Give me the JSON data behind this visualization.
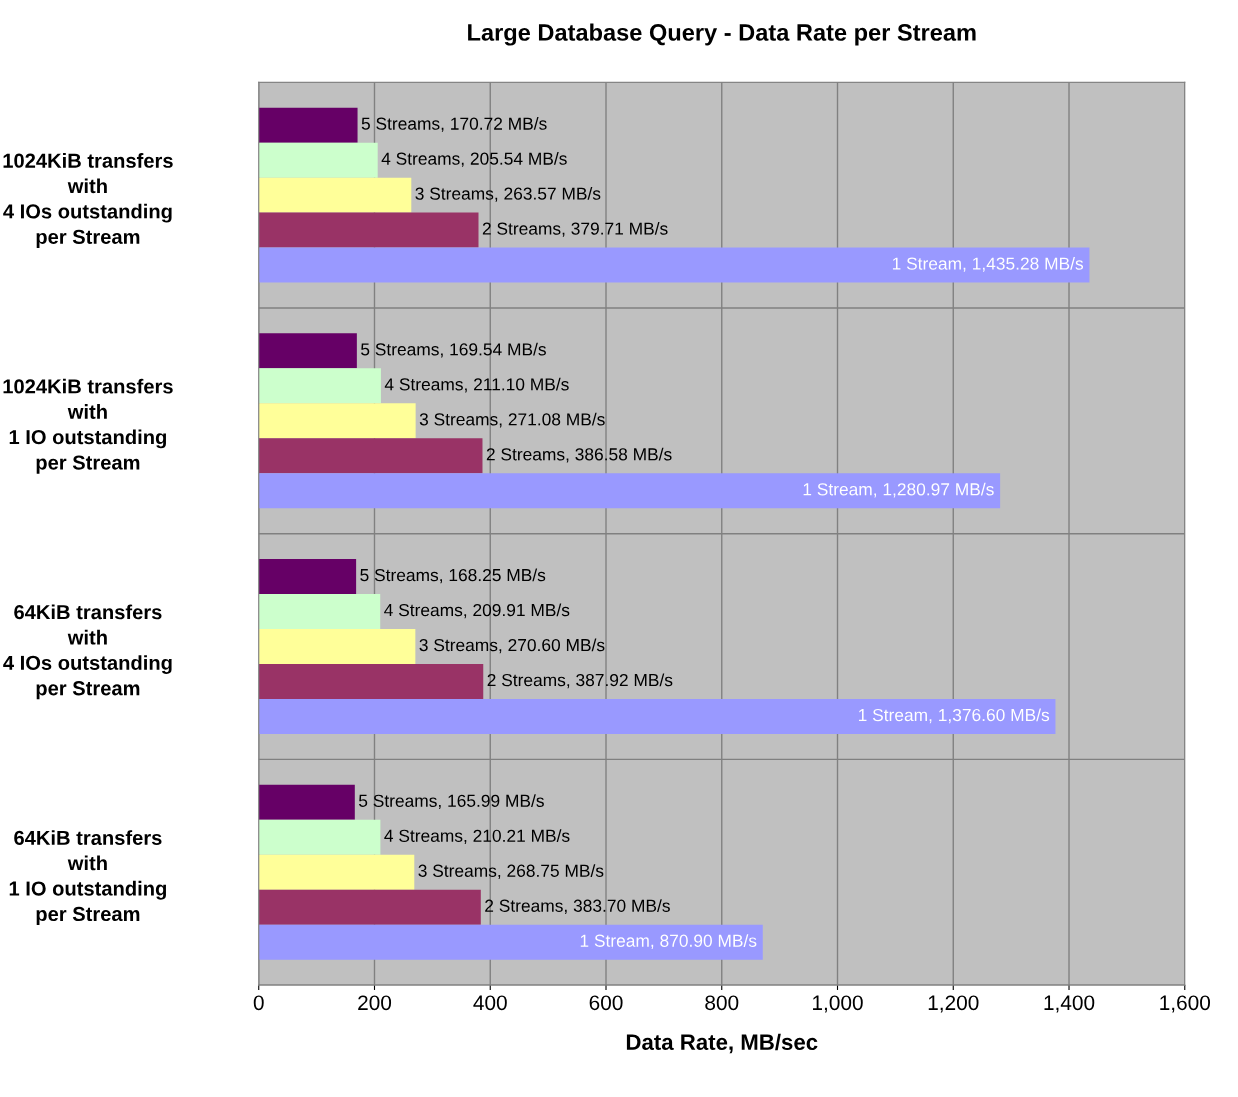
{
  "chart_data": {
    "type": "bar",
    "orientation": "horizontal",
    "title": "Large Database Query - Data Rate per Stream",
    "xlabel": "Data Rate, MB/sec",
    "categories": [
      "1024KiB transfers\nwith\n4 IOs outstanding\nper Stream",
      "1024KiB transfers\nwith\n1 IO outstanding\nper Stream",
      "64KiB transfers\nwith\n4 IOs outstanding\nper Stream",
      "64KiB transfers\nwith\n1 IO outstanding\nper Stream"
    ],
    "series": [
      {
        "color": "#660066",
        "values": [
          170.72,
          169.54,
          168.25,
          165.99
        ],
        "value_labels": [
          "5 Streams, 170.72 MB/s",
          "5 Streams, 169.54 MB/s",
          "5 Streams, 168.25 MB/s",
          "5 Streams, 165.99 MB/s"
        ]
      },
      {
        "color": "#ccffcc",
        "values": [
          205.54,
          211.1,
          209.91,
          210.21
        ],
        "value_labels": [
          "4 Streams, 205.54 MB/s",
          "4 Streams, 211.10 MB/s",
          "4 Streams, 209.91 MB/s",
          "4 Streams, 210.21 MB/s"
        ]
      },
      {
        "color": "#ffff99",
        "values": [
          263.57,
          271.08,
          270.6,
          268.75
        ],
        "value_labels": [
          "3 Streams, 263.57 MB/s",
          "3 Streams, 271.08 MB/s",
          "3 Streams, 270.60 MB/s",
          "3 Streams, 268.75 MB/s"
        ]
      },
      {
        "color": "#993366",
        "values": [
          379.71,
          386.58,
          387.92,
          383.7
        ],
        "value_labels": [
          "2 Streams, 379.71 MB/s",
          "2 Streams, 386.58 MB/s",
          "2 Streams, 387.92 MB/s",
          "2 Streams, 383.70 MB/s"
        ]
      },
      {
        "color": "#9999ff",
        "values": [
          1435.28,
          1280.97,
          1376.6,
          870.9
        ],
        "value_labels": [
          "1 Stream, 1,435.28 MB/s",
          "1 Stream, 1,280.97 MB/s",
          "1 Stream, 1,376.60 MB/s",
          "1 Stream, 870.90 MB/s"
        ]
      }
    ],
    "xlim": [
      0,
      1600
    ],
    "xticks": [
      0,
      {
        "value": 200,
        "label": "200"
      },
      {
        "value": 400,
        "label": "400"
      },
      {
        "value": 600,
        "label": "600"
      },
      {
        "value": 800,
        "label": "800"
      },
      {
        "value": 1000,
        "label": "1,000"
      },
      {
        "value": 1200,
        "label": "1,200"
      },
      {
        "value": 1400,
        "label": "1,400"
      },
      {
        "value": 1600,
        "label": "1,600"
      }
    ],
    "grid": true
  }
}
